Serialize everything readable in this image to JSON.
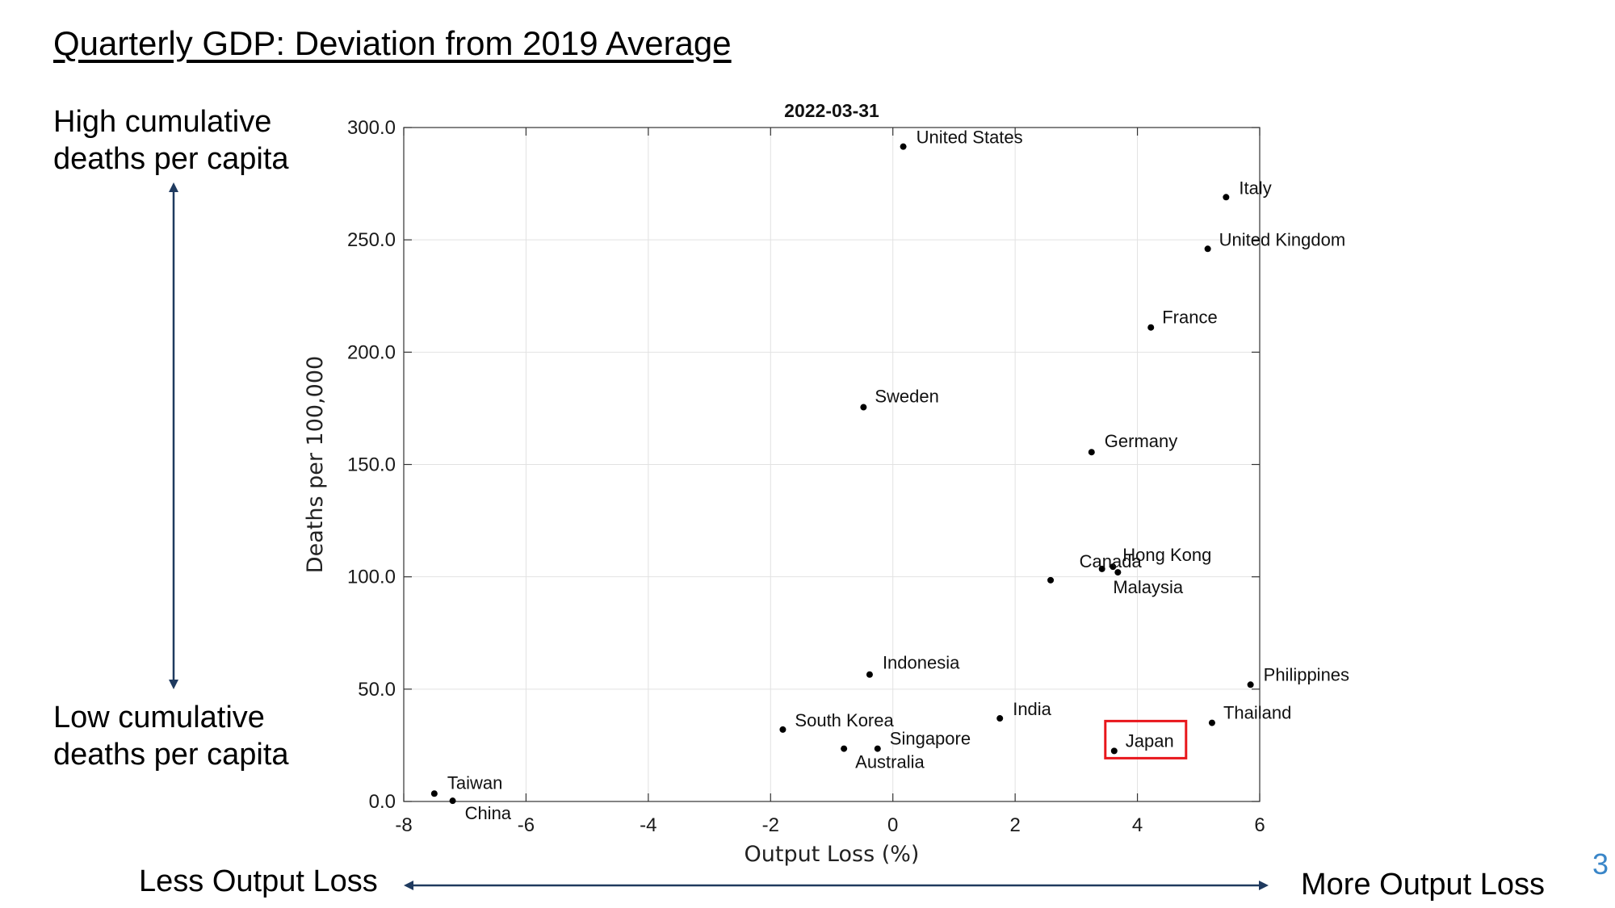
{
  "slide": {
    "title": "Quarterly GDP: Deviation from 2019 Average",
    "top_left_label": [
      "High cumulative",
      "deaths per capita"
    ],
    "bottom_left_label": [
      "Low cumulative",
      "deaths per capita"
    ],
    "less_output_label": "Less Output Loss",
    "more_output_label": "More Output Loss",
    "page_number": "3",
    "arrow_color": "#1f3a5f",
    "highlight_color": "#e8161b"
  },
  "chart_data": {
    "type": "scatter",
    "title": "2022-03-31",
    "xlabel": "Output Loss (%)",
    "ylabel": "Deaths per 100,000",
    "xlim": [
      -8,
      6
    ],
    "ylim": [
      0,
      300
    ],
    "xticks": [
      -8,
      -6,
      -4,
      -2,
      0,
      2,
      4,
      6
    ],
    "yticks": [
      "0.0",
      "50.0",
      "100.0",
      "150.0",
      "200.0",
      "250.0",
      "300.0"
    ],
    "grid": true,
    "highlighted": "Japan",
    "points": [
      {
        "label": "United States",
        "x": 0.17,
        "y": 291.5
      },
      {
        "label": "Italy",
        "x": 5.45,
        "y": 269
      },
      {
        "label": "United Kingdom",
        "x": 5.15,
        "y": 246
      },
      {
        "label": "France",
        "x": 4.22,
        "y": 211
      },
      {
        "label": "Sweden",
        "x": -0.48,
        "y": 175.5
      },
      {
        "label": "Germany",
        "x": 3.25,
        "y": 155.5
      },
      {
        "label": "Hong Kong",
        "x": 3.6,
        "y": 104.5
      },
      {
        "label": "Canada",
        "x": 3.42,
        "y": 103.5
      },
      {
        "label": "Malaysia",
        "x": 3.68,
        "y": 102
      },
      {
        "label": "",
        "x": 2.58,
        "y": 98.5
      },
      {
        "label": "Indonesia",
        "x": -0.38,
        "y": 56.5
      },
      {
        "label": "Philippines",
        "x": 5.85,
        "y": 52
      },
      {
        "label": "India",
        "x": 1.75,
        "y": 37
      },
      {
        "label": "Thailand",
        "x": 5.22,
        "y": 35
      },
      {
        "label": "South Korea",
        "x": -1.8,
        "y": 32
      },
      {
        "label": "Singapore",
        "x": -0.25,
        "y": 23.5
      },
      {
        "label": "Australia",
        "x": -0.8,
        "y": 23.5
      },
      {
        "label": "Japan",
        "x": 3.62,
        "y": 22.5
      },
      {
        "label": "Taiwan",
        "x": -7.5,
        "y": 3.5
      },
      {
        "label": "China",
        "x": -7.2,
        "y": 0.3
      }
    ]
  }
}
